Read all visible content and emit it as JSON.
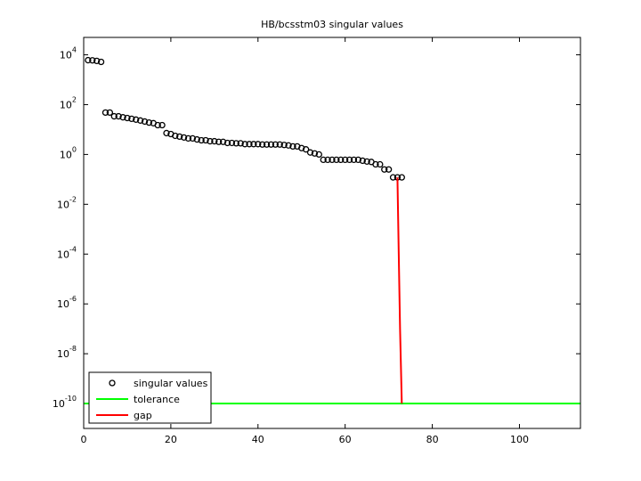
{
  "chart_data": {
    "type": "scatter",
    "title": "HB/bcsstm03 singular values",
    "log_y": true,
    "xlim": [
      0,
      114
    ],
    "xticks": [
      0,
      20,
      40,
      60,
      80,
      100
    ],
    "ylim": [
      1e-11,
      50000
    ],
    "yticks": [
      {
        "value": 1e-10,
        "label": "10^-10"
      },
      {
        "value": 1e-08,
        "label": "10^-8"
      },
      {
        "value": 1e-06,
        "label": "10^-6"
      },
      {
        "value": 0.0001,
        "label": "10^-4"
      },
      {
        "value": 0.01,
        "label": "10^-2"
      },
      {
        "value": 1,
        "label": "10^0"
      },
      {
        "value": 100,
        "label": "10^2"
      },
      {
        "value": 10000,
        "label": "10^4"
      }
    ],
    "legend": "lower left",
    "series": [
      {
        "name": "singular values",
        "color": "#000000",
        "marker": "circle",
        "x": [
          1,
          2,
          3,
          4,
          5,
          6,
          7,
          8,
          9,
          10,
          11,
          12,
          13,
          14,
          15,
          16,
          17,
          18,
          19,
          20,
          21,
          22,
          23,
          24,
          25,
          26,
          27,
          28,
          29,
          30,
          31,
          32,
          33,
          34,
          35,
          36,
          37,
          38,
          39,
          40,
          41,
          42,
          43,
          44,
          45,
          46,
          47,
          48,
          49,
          50,
          51,
          52,
          53,
          54,
          55,
          56,
          57,
          58,
          59,
          60,
          61,
          62,
          63,
          64,
          65,
          66,
          67,
          68,
          69,
          70,
          71,
          72,
          73
        ],
        "values": [
          6100,
          6000,
          5700,
          5200,
          48,
          48,
          34,
          34,
          31,
          29,
          27,
          25,
          23,
          21,
          19,
          18,
          15,
          15,
          7.2,
          6.6,
          5.6,
          5.2,
          4.8,
          4.4,
          4.4,
          4.0,
          3.7,
          3.7,
          3.4,
          3.4,
          3.2,
          3.2,
          2.9,
          2.9,
          2.8,
          2.8,
          2.6,
          2.6,
          2.6,
          2.6,
          2.5,
          2.5,
          2.5,
          2.5,
          2.5,
          2.4,
          2.3,
          2.1,
          2.1,
          1.8,
          1.6,
          1.2,
          1.1,
          1.0,
          0.61,
          0.61,
          0.61,
          0.61,
          0.61,
          0.61,
          0.61,
          0.61,
          0.61,
          0.56,
          0.52,
          0.5,
          0.4,
          0.4,
          0.25,
          0.25,
          0.12,
          0.12,
          0.12
        ]
      },
      {
        "name": "tolerance",
        "color": "#00ff00",
        "marker": "line",
        "x": [
          0,
          114
        ],
        "values": [
          1e-10,
          1e-10
        ]
      },
      {
        "name": "gap",
        "color": "#ff0000",
        "marker": "line",
        "x": [
          72,
          72.3,
          72.6,
          73
        ],
        "values": [
          0.12,
          0.0001,
          1e-07,
          1e-10
        ]
      }
    ]
  }
}
